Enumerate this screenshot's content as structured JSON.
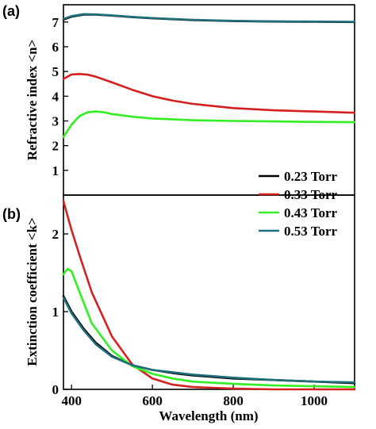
{
  "chart_data": [
    {
      "panel_label": "(a)",
      "type": "line",
      "xlabel": "",
      "ylabel": "Refractive index <n>",
      "xlim": [
        380,
        1100
      ],
      "ylim": [
        0,
        7.7
      ],
      "yticks": [
        1,
        2,
        3,
        4,
        5,
        6,
        7
      ],
      "series": [
        {
          "name": "0.23 Torr",
          "color": "#000000",
          "x": [
            380,
            400,
            430,
            460,
            500,
            550,
            600,
            700,
            800,
            900,
            1000,
            1100
          ],
          "y": [
            7.1,
            7.22,
            7.3,
            7.3,
            7.26,
            7.2,
            7.15,
            7.08,
            7.04,
            7.02,
            7.01,
            7.0
          ]
        },
        {
          "name": "0.33 Torr",
          "color": "#d42020",
          "x": [
            380,
            400,
            420,
            440,
            460,
            500,
            550,
            600,
            650,
            700,
            800,
            900,
            1000,
            1100
          ],
          "y": [
            4.7,
            4.88,
            4.9,
            4.87,
            4.79,
            4.56,
            4.26,
            4.0,
            3.82,
            3.69,
            3.52,
            3.43,
            3.38,
            3.33
          ]
        },
        {
          "name": "0.43 Torr",
          "color": "#33ee22",
          "x": [
            380,
            390,
            400,
            420,
            440,
            460,
            480,
            500,
            550,
            600,
            700,
            800,
            900,
            1000,
            1100
          ],
          "y": [
            2.35,
            2.6,
            2.85,
            3.2,
            3.35,
            3.38,
            3.35,
            3.28,
            3.17,
            3.1,
            3.03,
            3.0,
            2.98,
            2.96,
            2.95
          ]
        },
        {
          "name": "0.53 Torr",
          "color": "#1f6f7a",
          "x": [
            380,
            400,
            430,
            460,
            500,
            550,
            600,
            700,
            800,
            900,
            1000,
            1100
          ],
          "y": [
            7.13,
            7.24,
            7.32,
            7.31,
            7.27,
            7.21,
            7.16,
            7.09,
            7.05,
            7.03,
            7.02,
            7.01
          ]
        }
      ]
    },
    {
      "panel_label": "(b)",
      "type": "line",
      "xlabel": "Wavelength (nm)",
      "ylabel": "Extinction coefficient <k>",
      "xlim": [
        380,
        1100
      ],
      "ylim": [
        0,
        2.5
      ],
      "xticks": [
        400,
        600,
        800,
        1000
      ],
      "yticks": [
        0,
        1,
        2
      ],
      "series": [
        {
          "name": "0.23 Torr",
          "color": "#000000",
          "x": [
            380,
            400,
            430,
            460,
            500,
            550,
            600,
            650,
            700,
            800,
            900,
            1000,
            1100
          ],
          "y": [
            1.2,
            1.0,
            0.78,
            0.6,
            0.43,
            0.31,
            0.25,
            0.21,
            0.18,
            0.14,
            0.12,
            0.1,
            0.08
          ]
        },
        {
          "name": "0.33 Torr",
          "color": "#d42020",
          "x": [
            380,
            400,
            420,
            450,
            500,
            550,
            600,
            650,
            700,
            800,
            900,
            1000,
            1100
          ],
          "y": [
            2.42,
            2.05,
            1.72,
            1.25,
            0.68,
            0.32,
            0.14,
            0.06,
            0.03,
            0.01,
            0.0,
            0.0,
            0.0
          ]
        },
        {
          "name": "0.43 Torr",
          "color": "#33ee22",
          "x": [
            380,
            390,
            400,
            420,
            450,
            500,
            550,
            600,
            650,
            700,
            800,
            900,
            1000,
            1100
          ],
          "y": [
            1.48,
            1.55,
            1.52,
            1.25,
            0.85,
            0.5,
            0.3,
            0.2,
            0.14,
            0.1,
            0.07,
            0.05,
            0.04,
            0.03
          ]
        },
        {
          "name": "0.53 Torr",
          "color": "#1f6f7a",
          "x": [
            380,
            400,
            430,
            460,
            500,
            550,
            600,
            650,
            700,
            800,
            900,
            1000,
            1100
          ],
          "y": [
            1.18,
            0.98,
            0.76,
            0.58,
            0.42,
            0.31,
            0.25,
            0.22,
            0.19,
            0.15,
            0.12,
            0.1,
            0.09
          ]
        }
      ]
    }
  ],
  "legend": {
    "placement": "right, spanning both panels",
    "entries": [
      {
        "label": "0.23 Torr",
        "color": "#000000"
      },
      {
        "label": "0.33 Torr",
        "color": "#d42020"
      },
      {
        "label": "0.43 Torr",
        "color": "#33ee22"
      },
      {
        "label": "0.53 Torr",
        "color": "#1f6f7a"
      }
    ]
  }
}
